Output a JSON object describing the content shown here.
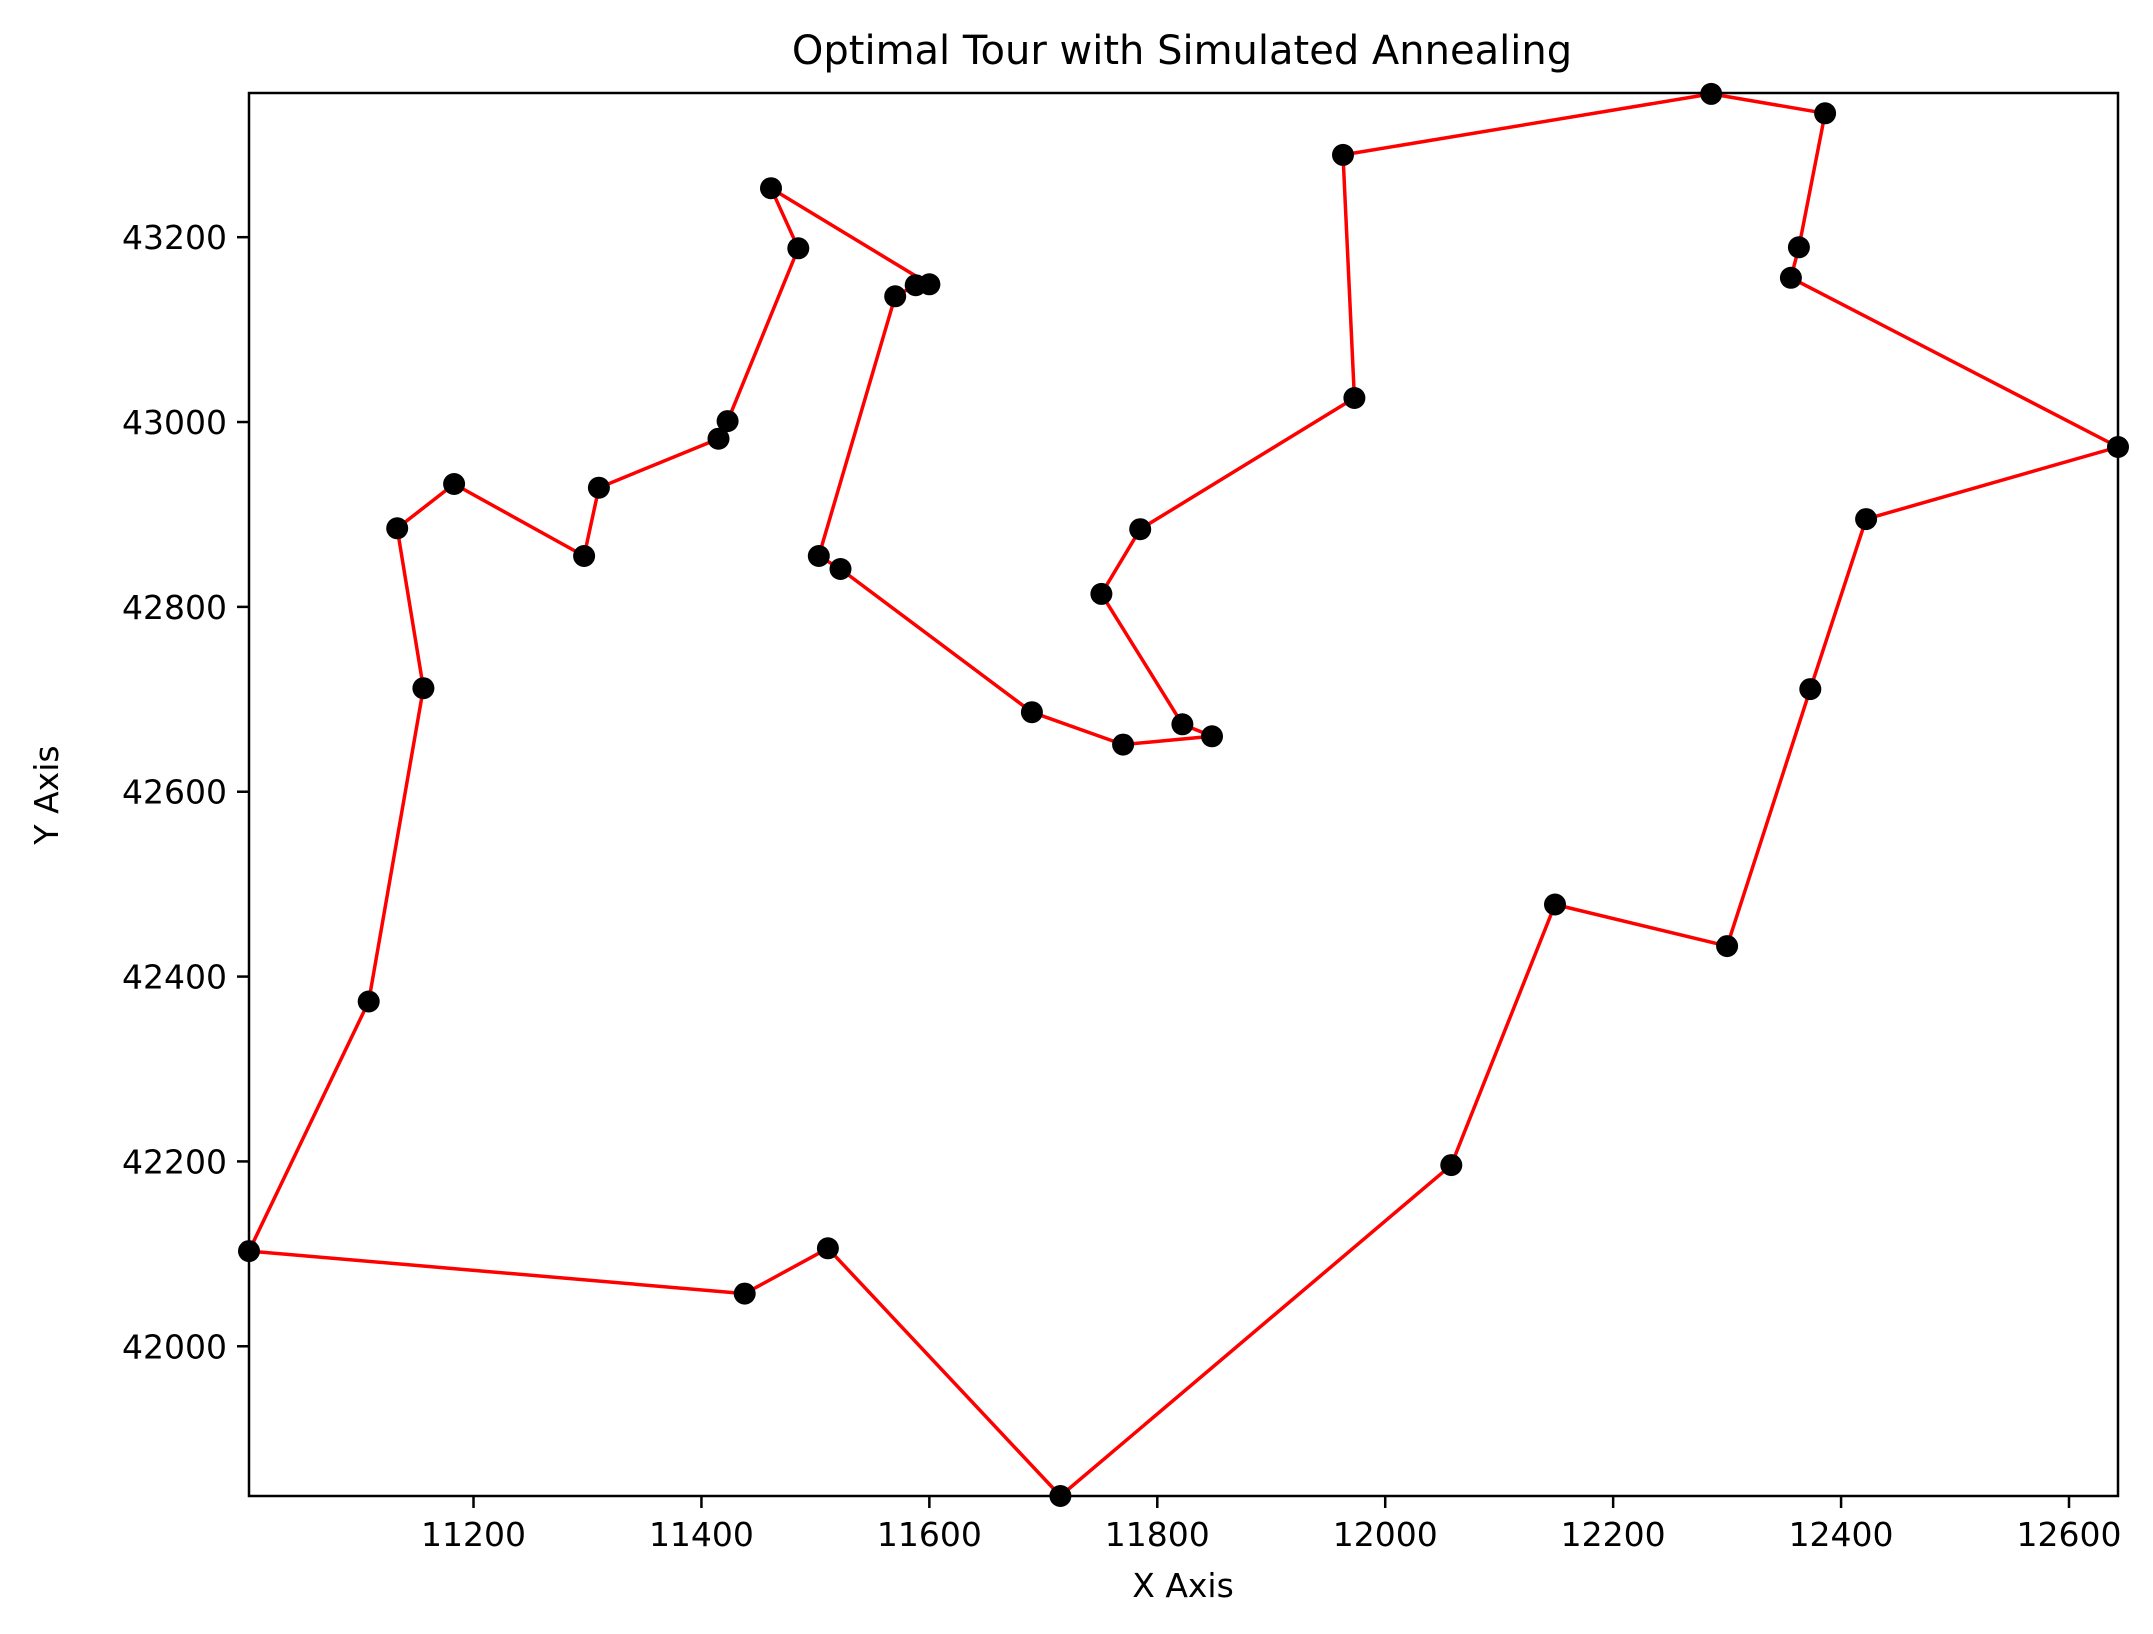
{
  "chart_data": {
    "type": "line",
    "title": "Optimal Tour with Simulated Annealing",
    "xlabel": "X Axis",
    "ylabel": "Y Axis",
    "xlim": [
      11003,
      12643
    ],
    "ylim": [
      41838,
      43356
    ],
    "xticks": [
      11200,
      11400,
      11600,
      11800,
      12000,
      12200,
      12400,
      12600
    ],
    "yticks": [
      42000,
      42200,
      42400,
      42600,
      42800,
      43000,
      43200
    ],
    "grid": false,
    "series": [
      {
        "line_color": "#ff0000",
        "marker_color": "#000000",
        "points": [
          [
            11003,
            42103
          ],
          [
            11108,
            42373
          ],
          [
            11156,
            42712
          ],
          [
            11133,
            42885
          ],
          [
            11183,
            42933
          ],
          [
            11297,
            42855
          ],
          [
            11310,
            42929
          ],
          [
            11415,
            42982
          ],
          [
            11423,
            43001
          ],
          [
            11485,
            43188
          ],
          [
            11461,
            43253
          ],
          [
            11600,
            43149
          ],
          [
            11588,
            43148
          ],
          [
            11570,
            43136
          ],
          [
            11503,
            42855
          ],
          [
            11522,
            42841
          ],
          [
            11690,
            42686
          ],
          [
            11770,
            42651
          ],
          [
            11848,
            42660
          ],
          [
            11822,
            42673
          ],
          [
            11751,
            42814
          ],
          [
            11785,
            42884
          ],
          [
            11973,
            43026
          ],
          [
            11963,
            43289
          ],
          [
            12286,
            43355
          ],
          [
            12386,
            43334
          ],
          [
            12363,
            43189
          ],
          [
            12356,
            43156
          ],
          [
            12643,
            42973
          ],
          [
            12422,
            42895
          ],
          [
            12373,
            42711
          ],
          [
            12300,
            42433
          ],
          [
            12149,
            42478
          ],
          [
            12058,
            42196
          ],
          [
            11715,
            41838
          ],
          [
            11511,
            42106
          ],
          [
            11438,
            42057
          ]
        ]
      }
    ]
  }
}
